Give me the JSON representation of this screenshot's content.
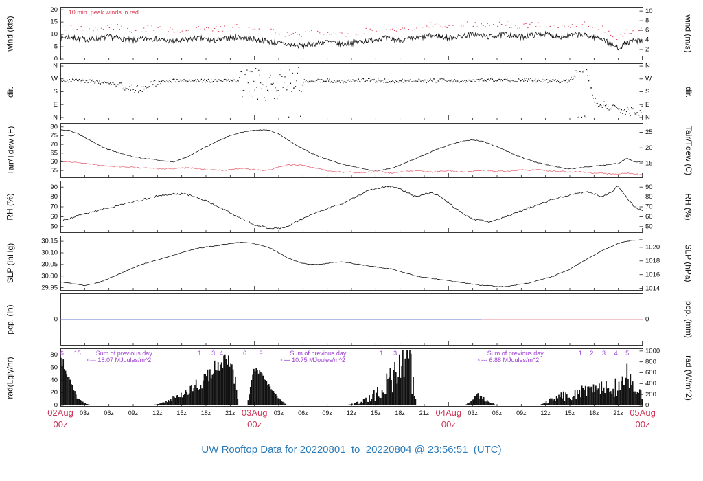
{
  "title": "UW Rooftop Data for 20220801  to  20220804 @ 23:56:51  (UTC)",
  "colors": {
    "frame": "#222222",
    "tick_text": "#111111",
    "trace": "#111111",
    "day_label_red": "#cc3355",
    "peak_wind_red": "#d94055",
    "tdew_red": "#e56a78",
    "purple": "#9b3fd1",
    "title_blue": "#2b7bb9",
    "pcp_blue": "#6677cc",
    "pcp_red": "#e58898"
  },
  "x_axis": {
    "range_hours": [
      0,
      72
    ],
    "day_ticks": [
      {
        "t": 0,
        "line1": "02Aug",
        "line2": "00z"
      },
      {
        "t": 24,
        "line1": "03Aug",
        "line2": "00z"
      },
      {
        "t": 48,
        "line1": "04Aug",
        "line2": "00z"
      },
      {
        "t": 72,
        "line1": "05Aug",
        "line2": "00z"
      }
    ],
    "hour_ticks": [
      {
        "t": 3,
        "label": "03z"
      },
      {
        "t": 6,
        "label": "06z"
      },
      {
        "t": 9,
        "label": "09z"
      },
      {
        "t": 12,
        "label": "12z"
      },
      {
        "t": 15,
        "label": "15z"
      },
      {
        "t": 18,
        "label": "18z"
      },
      {
        "t": 21,
        "label": "21z"
      },
      {
        "t": 27,
        "label": "03z"
      },
      {
        "t": 30,
        "label": "06z"
      },
      {
        "t": 33,
        "label": "09z"
      },
      {
        "t": 36,
        "label": "12z"
      },
      {
        "t": 39,
        "label": "15z"
      },
      {
        "t": 42,
        "label": "18z"
      },
      {
        "t": 45,
        "label": "21z"
      },
      {
        "t": 51,
        "label": "03z"
      },
      {
        "t": 54,
        "label": "06z"
      },
      {
        "t": 57,
        "label": "09z"
      },
      {
        "t": 60,
        "label": "12z"
      },
      {
        "t": 63,
        "label": "15z"
      },
      {
        "t": 66,
        "label": "18z"
      },
      {
        "t": 69,
        "label": "21z"
      }
    ]
  },
  "chart_data": [
    {
      "id": "wind",
      "type": "line",
      "ylabel_left": "wind (kts)",
      "ylabel_right": "wind (m/s)",
      "ylim": [
        0,
        20.6
      ],
      "yticks_left": {
        "pos": [
          0,
          5,
          10,
          15,
          20
        ],
        "labels": [
          "0",
          "5",
          "10",
          "15",
          "20"
        ]
      },
      "yticks_right": {
        "pos": [
          3.89,
          7.78,
          11.67,
          15.56,
          19.45
        ],
        "labels": [
          "2",
          "4",
          "6",
          "8",
          "10"
        ]
      },
      "note": {
        "text": "10 min. peak winds in red",
        "t": 1.0
      },
      "peak": {
        "name": "10min_peak_wind_kts",
        "offset": 4.0,
        "jitter": 1.3
      },
      "series": [
        {
          "name": "sustained_wind_kts",
          "color": "#111111",
          "jitter": 1.1,
          "substeps": 12,
          "values": [
            8.5,
            9,
            8.5,
            8,
            8,
            8.5,
            9,
            8.5,
            8,
            7.5,
            8,
            8.5,
            8,
            7.5,
            7,
            7.5,
            8,
            8.5,
            8,
            7.5,
            8,
            8.5,
            9,
            8.5,
            8,
            7.5,
            7,
            6.5,
            6,
            5.5,
            5.5,
            6,
            6.5,
            7,
            6.5,
            6,
            6.5,
            7,
            7.5,
            8,
            8.5,
            8,
            7.5,
            8,
            8.5,
            9,
            9.5,
            9,
            8.5,
            9,
            9.5,
            10,
            9.5,
            9,
            9.5,
            10,
            9.5,
            9,
            9.5,
            10,
            10,
            9.5,
            9,
            9.5,
            10,
            9.5,
            9,
            8.5,
            6,
            4.5,
            6.5,
            7.5,
            7
          ]
        }
      ]
    },
    {
      "id": "dir",
      "type": "scatter",
      "ylabel_left": "dir.",
      "ylabel_right": "dir.",
      "ylim": [
        -10,
        370
      ],
      "yticks_left": {
        "pos": [
          0,
          90,
          180,
          270,
          360
        ],
        "labels": [
          "N",
          "E",
          "S",
          "W",
          "N"
        ]
      },
      "yticks_right": {
        "pos": [
          0,
          90,
          180,
          270,
          360
        ],
        "labels": [
          "N",
          "E",
          "S",
          "W",
          "N"
        ]
      },
      "spread_segments": [
        [
          0,
          7,
          12
        ],
        [
          7,
          12,
          30
        ],
        [
          12,
          22,
          12
        ],
        [
          22,
          30,
          110
        ],
        [
          30,
          63,
          13
        ],
        [
          63,
          66,
          28
        ],
        [
          66,
          72.1,
          32
        ]
      ],
      "series": [
        {
          "name": "wind_direction_deg",
          "color": "#111111",
          "values": [
            265,
            262,
            260,
            258,
            255,
            250,
            245,
            230,
            215,
            205,
            210,
            225,
            245,
            255,
            260,
            262,
            260,
            258,
            260,
            262,
            260,
            258,
            255,
            250,
            240,
            220,
            190,
            230,
            270,
            310,
            260,
            255,
            260,
            262,
            258,
            255,
            260,
            262,
            265,
            262,
            260,
            258,
            260,
            262,
            260,
            258,
            260,
            262,
            265,
            262,
            260,
            262,
            265,
            268,
            265,
            262,
            260,
            262,
            265,
            262,
            260,
            258,
            255,
            260,
            340,
            350,
            120,
            90,
            70,
            60,
            50,
            40,
            60
          ]
        }
      ]
    },
    {
      "id": "temp",
      "type": "line",
      "ylabel_left": "Tair/Tdew (F)",
      "ylabel_right": "Tair/Tdew (C)",
      "ylim": [
        51.5,
        81.5
      ],
      "yticks_left": {
        "pos": [
          55,
          60,
          65,
          70,
          75,
          80
        ],
        "labels": [
          "55",
          "60",
          "65",
          "70",
          "75",
          "80"
        ]
      },
      "yticks_right": {
        "pos": [
          59,
          68,
          77
        ],
        "labels": [
          "15",
          "20",
          "25"
        ]
      },
      "series": [
        {
          "name": "tair_f",
          "color": "#111111",
          "jitter": 0.25,
          "substeps": 6,
          "values": [
            78.5,
            78,
            76.5,
            74,
            71.5,
            69,
            67,
            65.5,
            64,
            63,
            62,
            61.5,
            61,
            60.5,
            60,
            61.5,
            63.5,
            66,
            68.5,
            71,
            73,
            75,
            76.5,
            77.5,
            78,
            78.5,
            78,
            76,
            73,
            70,
            67.5,
            65,
            63,
            61.5,
            60,
            58.5,
            57.5,
            56.5,
            55.5,
            55,
            55.5,
            56.5,
            58,
            60,
            62,
            64,
            66,
            68,
            69.5,
            71,
            72,
            72.5,
            72,
            70.5,
            68.5,
            66.5,
            64.5,
            62.5,
            61,
            59.5,
            58.5,
            57.5,
            56.5,
            56,
            56.5,
            57,
            57.5,
            58,
            58.5,
            59,
            62,
            60,
            60
          ]
        },
        {
          "name": "tdew_f",
          "color": "#e56a78",
          "jitter": 0.35,
          "substeps": 6,
          "values": [
            60.5,
            60,
            59.5,
            59,
            58.5,
            58,
            57.5,
            57.5,
            57,
            57,
            56.5,
            56.5,
            56,
            56,
            56,
            56.5,
            56.5,
            56,
            55.5,
            55.5,
            55,
            55.5,
            56,
            56,
            55.5,
            55,
            55.5,
            57,
            58,
            58.5,
            58,
            57,
            56,
            55,
            54.5,
            54,
            54,
            53.5,
            54,
            54.5,
            54,
            53.5,
            54,
            54.5,
            55,
            54.5,
            54,
            54.5,
            55,
            54.5,
            54,
            54.5,
            55,
            55,
            54.5,
            54.5,
            55,
            55.5,
            55,
            55.5,
            55,
            54.5,
            54.5,
            54,
            54.5,
            54,
            53.5,
            53.5,
            53,
            53,
            53.5,
            53,
            52.5
          ]
        }
      ]
    },
    {
      "id": "rh",
      "type": "line",
      "ylabel_left": "RH (%)",
      "ylabel_right": "RH (%)",
      "ylim": [
        45,
        95
      ],
      "yticks_left": {
        "pos": [
          50,
          60,
          70,
          80,
          90
        ],
        "labels": [
          "50",
          "60",
          "70",
          "80",
          "90"
        ]
      },
      "yticks_right": {
        "pos": [
          50,
          60,
          70,
          80,
          90
        ],
        "labels": [
          "50",
          "60",
          "70",
          "80",
          "90"
        ]
      },
      "series": [
        {
          "name": "relative_humidity_pct",
          "color": "#111111",
          "jitter": 0.9,
          "substeps": 6,
          "values": [
            56,
            58,
            61,
            63,
            65,
            67,
            69,
            71,
            73,
            75,
            77,
            79,
            81,
            82,
            83,
            83,
            82,
            79,
            76,
            72,
            68,
            64,
            60,
            56,
            52,
            50,
            48,
            48,
            50,
            54,
            58,
            62,
            65,
            68,
            71,
            74,
            78,
            82,
            86,
            88,
            90,
            91,
            88,
            84,
            80,
            83,
            84,
            80,
            74,
            68,
            62,
            58,
            56,
            55,
            57,
            60,
            63,
            66,
            69,
            72,
            75,
            78,
            80,
            82,
            84,
            85,
            83,
            80,
            84,
            91,
            80,
            70,
            66
          ]
        }
      ]
    },
    {
      "id": "slp",
      "type": "line",
      "ylabel_left": "SLP (inHg)",
      "ylabel_right": "SLP (hPa)",
      "ylim": [
        29.943,
        30.168
      ],
      "yticks_left": {
        "pos": [
          29.95,
          30.0,
          30.05,
          30.1,
          30.15
        ],
        "labels": [
          "29.95",
          "30.00",
          "30.05",
          "30.10",
          "30.15"
        ]
      },
      "yticks_right": {
        "pos": [
          29.947,
          30.006,
          30.065,
          30.124
        ],
        "labels": [
          "1014",
          "1016",
          "1018",
          "1020"
        ]
      },
      "series": [
        {
          "name": "sea_level_pressure_inhg",
          "color": "#111111",
          "jitter": 0.0015,
          "substeps": 6,
          "values": [
            29.975,
            29.97,
            29.965,
            29.96,
            29.965,
            29.975,
            29.99,
            30.005,
            30.02,
            30.035,
            30.05,
            30.06,
            30.07,
            30.08,
            30.09,
            30.1,
            30.11,
            30.12,
            30.125,
            30.13,
            30.135,
            30.14,
            30.145,
            30.145,
            30.14,
            30.13,
            30.12,
            30.1,
            30.08,
            30.065,
            30.055,
            30.05,
            30.05,
            30.055,
            30.06,
            30.06,
            30.055,
            30.05,
            30.045,
            30.04,
            30.035,
            30.03,
            30.02,
            30.01,
            30.0,
            29.995,
            29.99,
            29.985,
            29.98,
            29.975,
            29.97,
            29.965,
            29.96,
            29.96,
            29.955,
            29.955,
            29.96,
            29.965,
            29.97,
            29.98,
            29.99,
            30.0,
            30.015,
            30.03,
            30.05,
            30.07,
            30.09,
            30.11,
            30.125,
            30.14,
            30.15,
            30.155,
            30.155
          ]
        }
      ]
    },
    {
      "id": "pcp",
      "type": "line",
      "ylabel_left": "pcp. (in)",
      "ylabel_right": "pcp. (mm)",
      "ylim": [
        -1,
        1
      ],
      "yticks_left": {
        "pos": [
          0
        ],
        "labels": [
          "0"
        ]
      },
      "yticks_right": {
        "pos": [
          0
        ],
        "labels": [
          "0"
        ]
      },
      "segments": [
        {
          "name": "pcp_trace_1",
          "t0": 0,
          "t1": 52,
          "value": 0,
          "color": "#6677cc"
        },
        {
          "name": "pcp_trace_2",
          "t0": 52,
          "t1": 72,
          "value": 0,
          "color": "#e58898"
        }
      ]
    },
    {
      "id": "rad",
      "type": "bar",
      "ylabel_left": "rad(Lgly/hr)",
      "ylabel_right": "rad (W/m^2)",
      "ylim": [
        0,
        88
      ],
      "yticks_left": {
        "pos": [
          0,
          20,
          40,
          60,
          80
        ],
        "labels": [
          "0",
          "20",
          "40",
          "60",
          "80"
        ]
      },
      "yticks_right": {
        "pos": [
          0,
          17.2,
          34.4,
          51.6,
          68.8,
          86
        ],
        "labels": [
          "0",
          "200",
          "400",
          "600",
          "800",
          "1000"
        ]
      },
      "spike_segments": [
        [
          0,
          4,
          0.12
        ],
        [
          12,
          21.9,
          0.3
        ],
        [
          24,
          28,
          0.12
        ],
        [
          36,
          44,
          0.6
        ],
        [
          50,
          54,
          0.5
        ],
        [
          60,
          72.1,
          0.55
        ]
      ],
      "sum_annotations": [
        {
          "t": 3.2,
          "line1": "Sum of previous day",
          "line2": "<--- 18.07 MJoules/m^2"
        },
        {
          "t": 27.2,
          "line1": "Sum of previous day",
          "line2": "<--- 10.75 MJoules/m^2"
        },
        {
          "t": 51.6,
          "line1": "Sum of previous day",
          "line2": "<--- 6.88 MJoules/m^2"
        }
      ],
      "top_marks": [
        {
          "t": 0.2,
          "label": "6"
        },
        {
          "t": 2.1,
          "label": "15"
        },
        {
          "t": 17.2,
          "label": "1"
        },
        {
          "t": 18.9,
          "label": "3"
        },
        {
          "t": 19.9,
          "label": "4"
        },
        {
          "t": 22.8,
          "label": "6"
        },
        {
          "t": 24.8,
          "label": "9"
        },
        {
          "t": 39.7,
          "label": "1"
        },
        {
          "t": 41.4,
          "label": "3"
        },
        {
          "t": 64.3,
          "label": "1"
        },
        {
          "t": 65.7,
          "label": "2"
        },
        {
          "t": 67.2,
          "label": "3"
        },
        {
          "t": 68.7,
          "label": "4"
        },
        {
          "t": 70.1,
          "label": "5"
        }
      ],
      "series": [
        {
          "name": "solar_radiation_ly_hr",
          "color": "#111111",
          "values": [
            75,
            45,
            12,
            3,
            0,
            0,
            0,
            0,
            0,
            0,
            0,
            0,
            2,
            6,
            12,
            18,
            26,
            34,
            44,
            56,
            70,
            82,
            0,
            0,
            62,
            45,
            28,
            10,
            0,
            0,
            0,
            0,
            0,
            0,
            0,
            0,
            2,
            5,
            10,
            18,
            30,
            45,
            65,
            80,
            0,
            0,
            0,
            0,
            0,
            0,
            0,
            12,
            15,
            4,
            0,
            0,
            0,
            0,
            0,
            0,
            5,
            10,
            15,
            18,
            20,
            22,
            25,
            28,
            25,
            30,
            45,
            28,
            20
          ]
        }
      ]
    }
  ]
}
